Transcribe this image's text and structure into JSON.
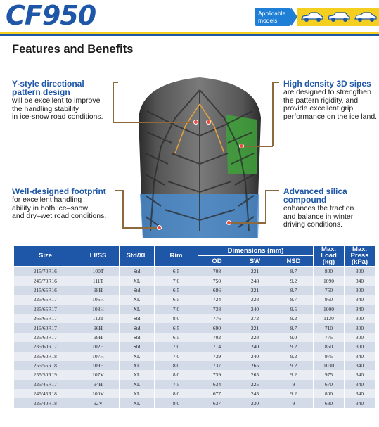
{
  "header": {
    "model": "CF950",
    "badge_line1": "Applicable",
    "badge_line2": "models",
    "accent_blue": "#1f57a8",
    "accent_yellow": "#f5cf1f",
    "badge_icons": [
      "sedan-car-icon",
      "hatchback-car-icon",
      "compact-car-icon"
    ]
  },
  "section_title": "Features and Benefits",
  "features": {
    "y_style": {
      "title_line1": "Y-style directional",
      "title_line2": "pattern design",
      "body": [
        "will be excellent to improve",
        "the handling stability",
        "in ice-snow road conditions."
      ]
    },
    "sipes": {
      "title": "High density 3D sipes",
      "body": [
        "are designed to strengthen",
        "the pattern rigidity, and",
        "provide excellent grip",
        "performance on the ice land."
      ]
    },
    "footprint": {
      "title": "Well-designed footprint",
      "body": [
        "for excellent handling",
        "ability in both ice–snow",
        "and dry–wet road conditions."
      ]
    },
    "silica": {
      "title_line1": "Advanced silica",
      "title_line2": "compound",
      "body": [
        "enhances the traction",
        "and balance in winter",
        "driving conditions."
      ]
    }
  },
  "table": {
    "headers": {
      "size": "Size",
      "li_ss": "LI/SS",
      "std_xl": "Std/XL",
      "rim": "Rim",
      "dimensions": "Dimensions (mm)",
      "od": "OD",
      "sw": "SW",
      "nsd": "NSD",
      "max_load_1": "Max.",
      "max_load_2": "Load",
      "max_load_3": "(kg)",
      "max_press_1": "Max.",
      "max_press_2": "Press",
      "max_press_3": "(kPa)"
    },
    "rows": [
      [
        "215/70R16",
        "100T",
        "Std",
        "6.5",
        "708",
        "221",
        "8.7",
        "800",
        "300"
      ],
      [
        "245/70R16",
        "111T",
        "XL",
        "7.0",
        "750",
        "248",
        "9.2",
        "1090",
        "340"
      ],
      [
        "215/65R16",
        "98H",
        "Std",
        "6.5",
        "686",
        "221",
        "8.7",
        "750",
        "300"
      ],
      [
        "225/65R17",
        "106H",
        "XL",
        "6.5",
        "724",
        "228",
        "8.7",
        "950",
        "340"
      ],
      [
        "235/65R17",
        "108H",
        "XL",
        "7.0",
        "738",
        "240",
        "9.5",
        "1000",
        "340"
      ],
      [
        "265/65R17",
        "112T",
        "Std",
        "8.0",
        "776",
        "272",
        "9.2",
        "1120",
        "300"
      ],
      [
        "215/60R17",
        "96H",
        "Std",
        "6.5",
        "690",
        "221",
        "8.7",
        "710",
        "300"
      ],
      [
        "225/60R17",
        "99H",
        "Std",
        "6.5",
        "702",
        "228",
        "9.0",
        "775",
        "300"
      ],
      [
        "235/60R17",
        "102H",
        "Std",
        "7.0",
        "714",
        "240",
        "9.2",
        "850",
        "300"
      ],
      [
        "235/60R18",
        "107H",
        "XL",
        "7.0",
        "739",
        "240",
        "9.2",
        "975",
        "340"
      ],
      [
        "255/55R18",
        "109H",
        "XL",
        "8.0",
        "737",
        "265",
        "9.2",
        "1030",
        "340"
      ],
      [
        "255/50R19",
        "107V",
        "XL",
        "8.0",
        "739",
        "265",
        "9.2",
        "975",
        "340"
      ],
      [
        "225/45R17",
        "94H",
        "XL",
        "7.5",
        "634",
        "225",
        "9",
        "670",
        "340"
      ],
      [
        "245/45R18",
        "100V",
        "XL",
        "8.0",
        "677",
        "243",
        "9.2",
        "800",
        "340"
      ],
      [
        "225/40R18",
        "92V",
        "XL",
        "8.0",
        "637",
        "230",
        "9",
        "630",
        "340"
      ]
    ]
  }
}
